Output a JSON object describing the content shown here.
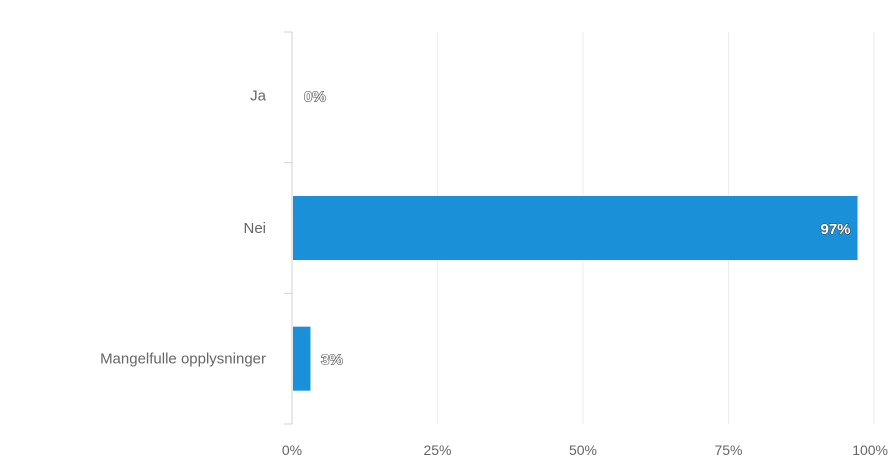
{
  "chart_data": {
    "type": "bar",
    "orientation": "horizontal",
    "categories": [
      "Ja",
      "Nei",
      "Mangelfulle opplysninger"
    ],
    "values": [
      0,
      97,
      3
    ],
    "data_labels": [
      "0%",
      "97%",
      "3%"
    ],
    "xlim": [
      0,
      100
    ],
    "x_ticks": [
      "0%",
      "25%",
      "50%",
      "75%",
      "100%"
    ],
    "title": "",
    "xlabel": "",
    "ylabel": "",
    "grid": true,
    "colors": {
      "bar": "#1a90d8"
    }
  }
}
